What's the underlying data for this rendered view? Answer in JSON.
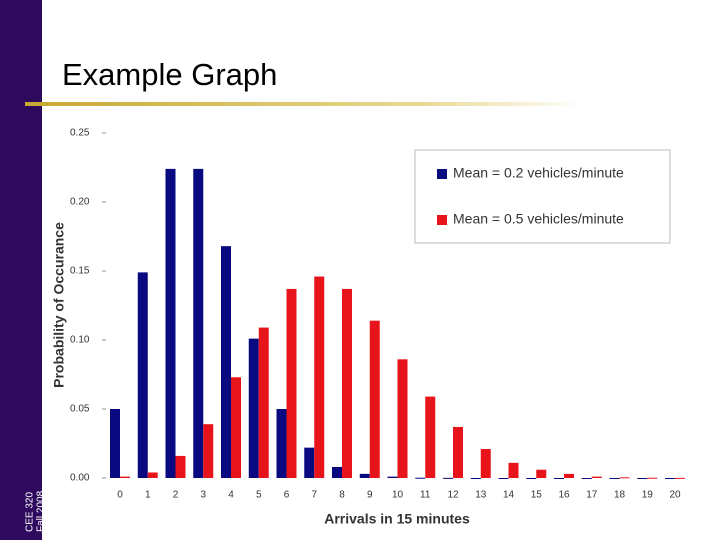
{
  "slide": {
    "title": "Example Graph",
    "sidebar": [
      "CEE 320",
      "Fall 2008"
    ]
  },
  "chart_data": {
    "type": "bar",
    "x_label": "Arrivals in 15 minutes",
    "y_label": "Probability of Occurance",
    "categories": [
      "0",
      "1",
      "2",
      "3",
      "4",
      "5",
      "6",
      "7",
      "8",
      "9",
      "10",
      "11",
      "12",
      "13",
      "14",
      "15",
      "16",
      "17",
      "18",
      "19",
      "20"
    ],
    "series": [
      {
        "name": "Mean = 0.2 vehicles/minute",
        "color": "#0a0a80",
        "values": [
          0.05,
          0.149,
          0.224,
          0.224,
          0.168,
          0.101,
          0.05,
          0.022,
          0.008,
          0.003,
          0.001,
          0.0002,
          0.0001,
          0,
          0,
          0,
          0,
          0,
          0,
          0,
          0
        ]
      },
      {
        "name": "Mean = 0.5 vehicles/minute",
        "color": "#e8141c",
        "values": [
          0.001,
          0.004,
          0.016,
          0.039,
          0.073,
          0.109,
          0.137,
          0.146,
          0.137,
          0.114,
          0.086,
          0.059,
          0.037,
          0.021,
          0.011,
          0.006,
          0.003,
          0.001,
          0.0005,
          0.0002,
          0.0001
        ]
      }
    ],
    "ylim": [
      0,
      0.25
    ],
    "yticks": [
      {
        "value": 0,
        "label": "0.00"
      },
      0.05,
      {
        "value": 0.1,
        "label": "0.10"
      },
      0.15,
      {
        "value": 0.2,
        "label": "0.20"
      },
      0.25
    ],
    "grid": false,
    "legend": "upper right"
  }
}
